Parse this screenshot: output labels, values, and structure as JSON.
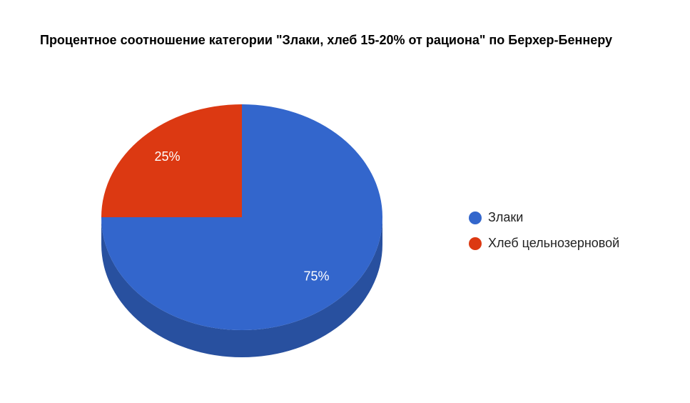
{
  "chart_data": {
    "type": "pie3d",
    "title": "Процентное соотношение категории \"Злаки, хлеб 15-20% от рациона\" по Берхер-Беннеру",
    "categories": [
      "Злаки",
      "Хлеб цельнозерновой"
    ],
    "values": [
      75,
      25
    ],
    "value_labels": [
      "75%",
      "25%"
    ],
    "colors": [
      "#3366cc",
      "#dc3912"
    ],
    "legend": "right"
  }
}
